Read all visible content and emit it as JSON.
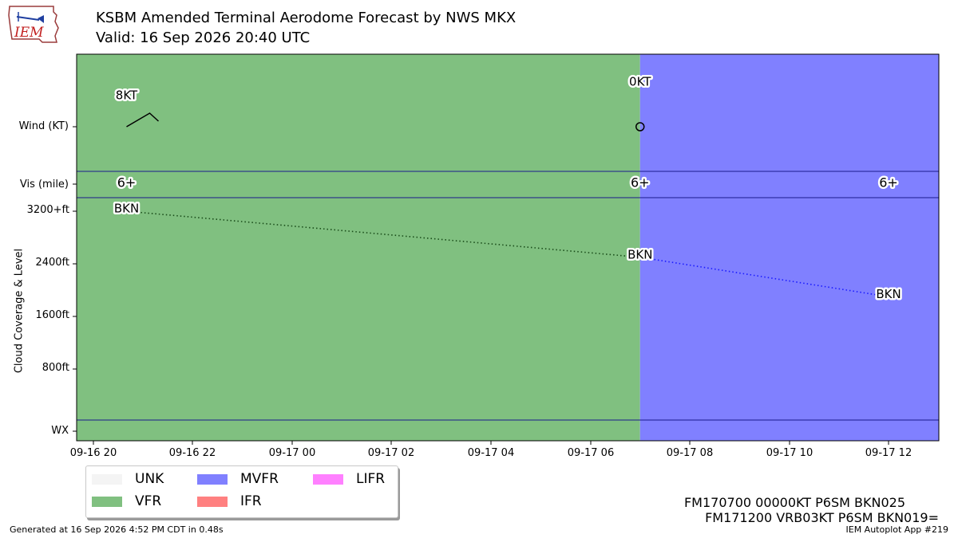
{
  "header": {
    "title": "KSBM Amended Terminal Aerodome Forecast by NWS MKX",
    "subtitle": "Valid: 16 Sep 2026 20:40 UTC",
    "logo_text": "IEM"
  },
  "legend": [
    {
      "label": "UNK",
      "color": "#f4f4f4"
    },
    {
      "label": "VFR",
      "color": "#80c080"
    },
    {
      "label": "MVFR",
      "color": "#8080ff"
    },
    {
      "label": "IFR",
      "color": "#ff8080"
    },
    {
      "label": "LIFR",
      "color": "#ff80ff"
    }
  ],
  "taf_text": [
    "FM170700 00000KT P6SM BKN025",
    "FM171200 VRB03KT P6SM BKN019="
  ],
  "footer": {
    "generated": "Generated at 16 Sep 2026 4:52 PM CDT in 0.48s",
    "app": "IEM Autoplot App #219"
  },
  "chart_data": {
    "type": "timeline",
    "title": "KSBM Amended Terminal Aerodome Forecast by NWS MKX",
    "x_range_hours_utc": [
      "2026-09-16 20:00",
      "2026-09-17 13:20"
    ],
    "x_ticks": [
      "09-16 20",
      "09-16 22",
      "09-17 00",
      "09-17 02",
      "09-17 04",
      "09-17 06",
      "09-17 08",
      "09-17 10",
      "09-17 12"
    ],
    "rows": [
      "Wind (KT)",
      "Vis (mile)",
      "Cloud Coverage & Level",
      "WX"
    ],
    "cloud_ticks": [
      "3200+ft",
      "2400ft",
      "1600ft",
      "800ft"
    ],
    "cloud_ylim_ft": [
      0,
      3200
    ],
    "periods": [
      {
        "start": "2026-09-16 20:40",
        "end": "2026-09-17 07:00",
        "category": "VFR",
        "color": "#80c080"
      },
      {
        "start": "2026-09-17 07:00",
        "end": "2026-09-17 13:20",
        "category": "MVFR",
        "color": "#8080ff"
      }
    ],
    "wind": [
      {
        "time": "2026-09-16 20:40",
        "speed_label": "8KT",
        "speed_kt": 8
      },
      {
        "time": "2026-09-17 07:00",
        "speed_label": "0KT",
        "speed_kt": 0
      }
    ],
    "visibility": [
      {
        "time": "2026-09-16 20:40",
        "label": "6+"
      },
      {
        "time": "2026-09-17 07:00",
        "label": "6+"
      },
      {
        "time": "2026-09-17 12:00",
        "label": "6+"
      }
    ],
    "clouds": [
      {
        "time": "2026-09-16 20:40",
        "coverage": "BKN",
        "level_ft": 3200,
        "color": "#1a4d1a"
      },
      {
        "time": "2026-09-17 07:00",
        "coverage": "BKN",
        "level_ft": 2500,
        "color": "#1a1aff"
      },
      {
        "time": "2026-09-17 12:00",
        "coverage": "BKN",
        "level_ft": 1900
      }
    ]
  }
}
